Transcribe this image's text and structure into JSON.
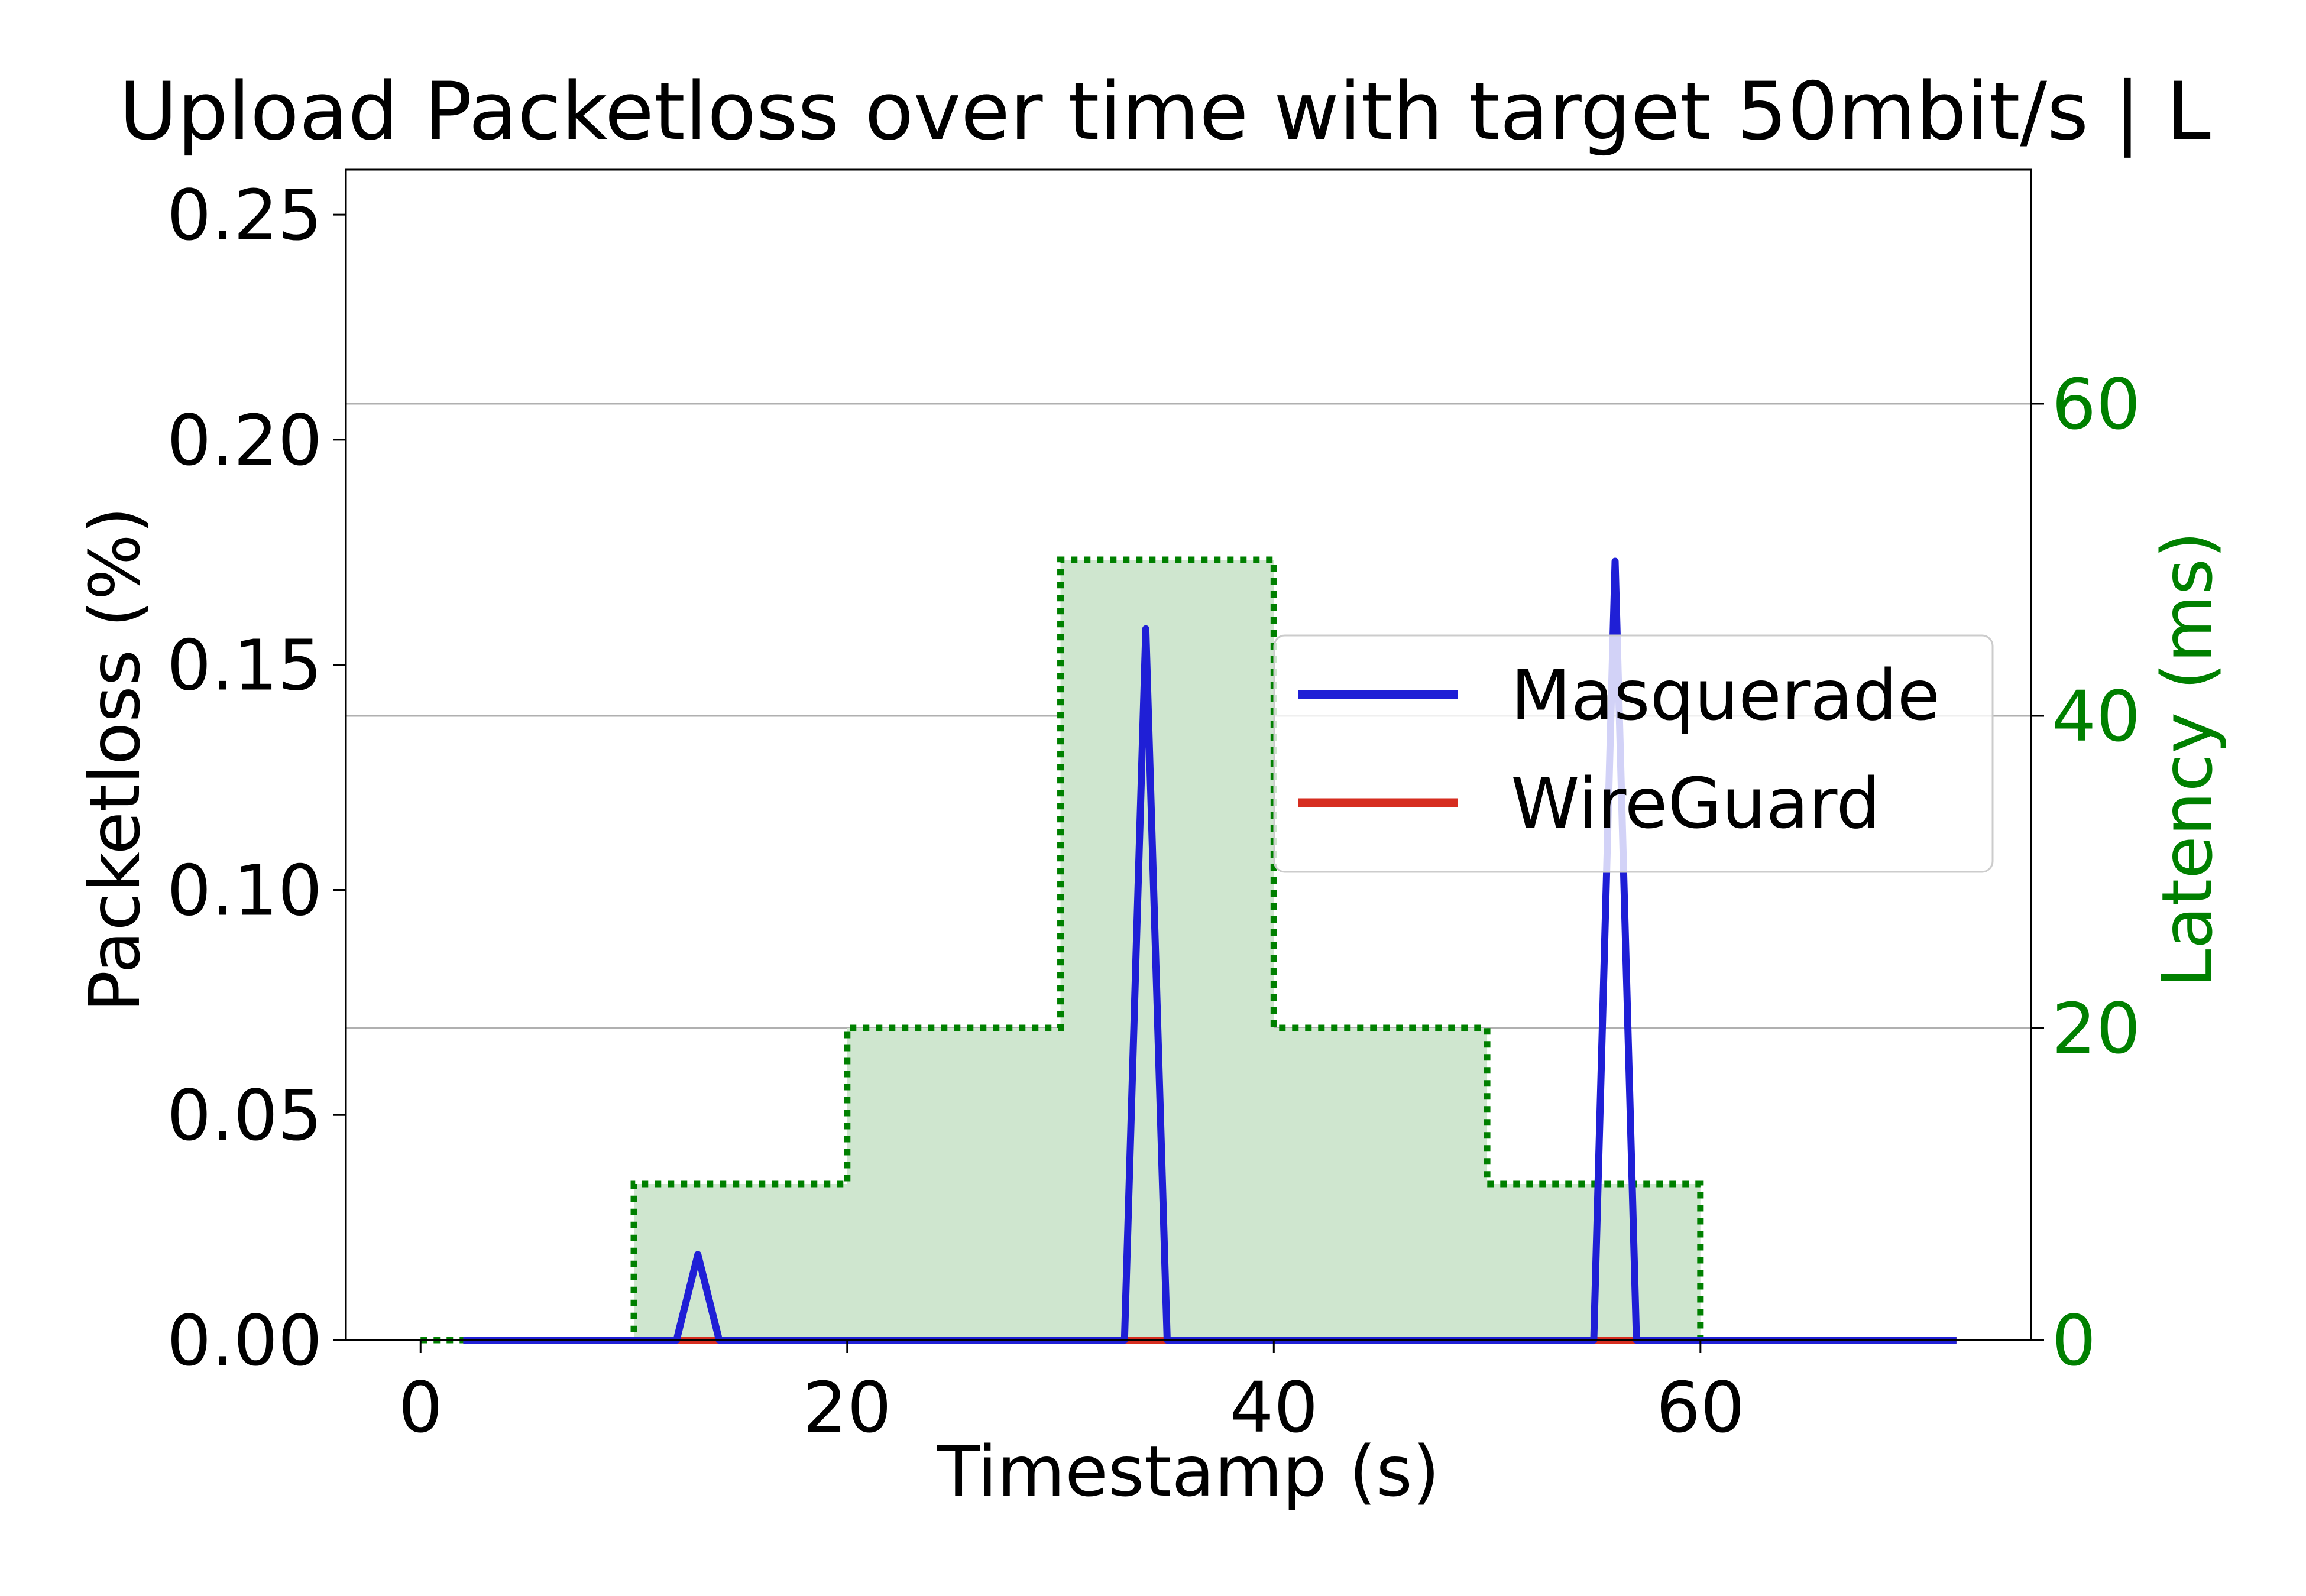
{
  "chart_data": {
    "type": "line",
    "title": "Upload Packetloss over time with target 50mbit/s | L",
    "xlabel": "Timestamp (s)",
    "ylabel": "Packetloss (%)",
    "y2label": "Latency (ms)",
    "xlim": [
      -3.5,
      75.5
    ],
    "ylim": [
      0,
      0.26
    ],
    "y2lim": [
      0,
      75
    ],
    "xticks": [
      0,
      20,
      40,
      60
    ],
    "xtick_labels": [
      "0",
      "20",
      "40",
      "60"
    ],
    "yticks": [
      0.0,
      0.05,
      0.1,
      0.15,
      0.2,
      0.25
    ],
    "ytick_labels": [
      "0.00",
      "0.05",
      "0.10",
      "0.15",
      "0.20",
      "0.25"
    ],
    "y2ticks": [
      0,
      20,
      40,
      60
    ],
    "y2tick_labels": [
      "0",
      "20",
      "40",
      "60"
    ],
    "grid": "y2-major",
    "legend_position": "center-right",
    "series": [
      {
        "name": "Masquerade",
        "axis": "left",
        "color": "#1f1fd6",
        "x": [
          2,
          12,
          13,
          14,
          33,
          34,
          35,
          55,
          56,
          57,
          72
        ],
        "values": [
          0,
          0,
          0.019,
          0,
          0,
          0.158,
          0,
          0,
          0.173,
          0,
          0
        ]
      },
      {
        "name": "WireGuard",
        "axis": "left",
        "color": "#d62d20",
        "x": [
          2,
          72
        ],
        "values": [
          0,
          0
        ]
      }
    ],
    "latency": {
      "axis": "right",
      "color": "#008000",
      "fill": "#cfe6cf",
      "style": "dotted-step",
      "x": [
        0,
        10,
        10,
        20,
        20,
        30,
        30,
        40,
        40,
        50,
        50,
        60,
        60,
        72
      ],
      "values": [
        0,
        0,
        10,
        10,
        20,
        20,
        50,
        50,
        20,
        20,
        10,
        10,
        0,
        0
      ]
    }
  }
}
